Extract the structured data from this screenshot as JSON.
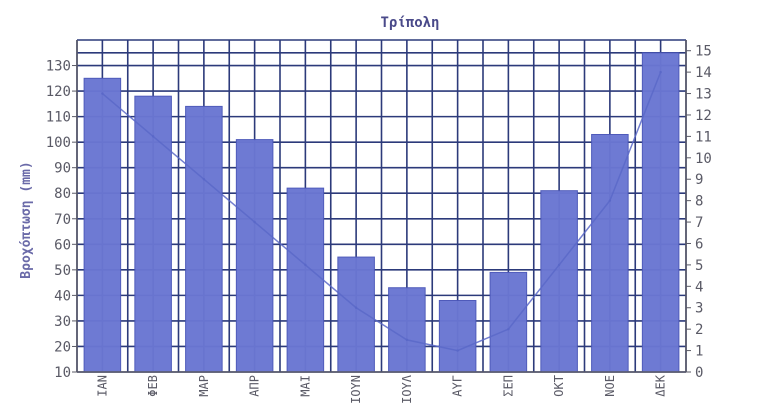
{
  "chart_data": {
    "type": "bar",
    "title": "Τρίπολη",
    "ylabel": "Βροχόπτωση (mm)",
    "y2label": "",
    "categories": [
      "ΙΑΝ",
      "ΦΕΒ",
      "ΜΑΡ",
      "ΑΠΡ",
      "ΜΑΙ",
      "ΙΟΥΝ",
      "ΙΟΥΛ",
      "ΑΥΓ",
      "ΣΕΠ",
      "ΟΚΤ",
      "ΝΟΕ",
      "ΔΕΚ"
    ],
    "series": [
      {
        "name": "",
        "type": "bar",
        "axis": "left",
        "values": [
          125,
          118,
          114,
          101,
          82,
          55,
          43,
          38,
          49,
          81,
          103,
          135
        ]
      },
      {
        "name": "",
        "type": "line",
        "axis": "right",
        "values": [
          13,
          11,
          9,
          7,
          5,
          3,
          1.5,
          1,
          2,
          5,
          8,
          14
        ]
      }
    ],
    "ylim": [
      10,
      140
    ],
    "yticks": [
      10,
      20,
      30,
      40,
      50,
      60,
      70,
      80,
      90,
      100,
      110,
      120,
      130
    ],
    "y2lim": [
      0,
      15.5
    ],
    "y2ticks": [
      0,
      1,
      2,
      3,
      4,
      5,
      6,
      7,
      8,
      9,
      10,
      11,
      12,
      13,
      14,
      15
    ],
    "grid": true,
    "legend": "none",
    "colors": {
      "bar": "#6a76d2",
      "bar_edge": "#4a56b8",
      "line": "#5a68c8",
      "grid": "#2c3a7a",
      "plot_bg": "#ffffff",
      "axis": "#5a5a66"
    }
  }
}
